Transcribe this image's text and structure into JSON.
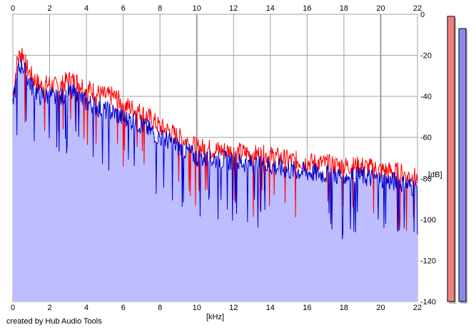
{
  "credit": "created by Hub Audio Tools",
  "chart_data": {
    "type": "area",
    "xlabel": "[kHz]",
    "ylabel": "[dB]",
    "xlim": [
      0,
      22
    ],
    "ylim": [
      -140,
      0
    ],
    "x_ticks": [
      0,
      2,
      4,
      6,
      8,
      10,
      12,
      14,
      16,
      18,
      20,
      22
    ],
    "y_ticks": [
      0,
      -20,
      -40,
      -60,
      -80,
      -100,
      -120,
      -140
    ],
    "grid": true,
    "colors": {
      "left_channel": "#ff0000",
      "right_channel": "#0000cc",
      "fill": "#bdbdff",
      "grid": "#a0a0a0",
      "meter_left": "#f08080",
      "meter_right": "#8a8aee"
    },
    "series": [
      {
        "color": "#ff0000",
        "x": [
          0,
          0.25,
          0.5,
          0.75,
          1,
          1.5,
          2,
          2.5,
          3,
          3.5,
          4,
          4.5,
          5,
          5.5,
          6,
          6.5,
          7,
          7.5,
          8,
          8.5,
          9,
          9.5,
          10,
          11,
          12,
          13,
          14,
          15,
          16,
          17,
          18,
          19,
          20,
          21,
          22
        ],
        "values": [
          -40,
          -22,
          -18,
          -26,
          -30,
          -35,
          -34,
          -36,
          -32,
          -33,
          -36,
          -38,
          -40,
          -40,
          -44,
          -46,
          -48,
          -51,
          -55,
          -57,
          -60,
          -62,
          -65,
          -66,
          -67,
          -68,
          -69,
          -71,
          -72,
          -73,
          -74,
          -74,
          -76,
          -77,
          -80
        ]
      },
      {
        "color": "#0000cc",
        "x": [
          0,
          0.25,
          0.5,
          0.75,
          1,
          1.5,
          2,
          2.5,
          3,
          3.5,
          4,
          4.5,
          5,
          5.5,
          6,
          6.5,
          7,
          7.5,
          8,
          8.5,
          9,
          9.5,
          10,
          11,
          12,
          13,
          14,
          15,
          16,
          17,
          18,
          19,
          20,
          21,
          22
        ],
        "values": [
          -46,
          -28,
          -24,
          -30,
          -35,
          -40,
          -40,
          -42,
          -38,
          -40,
          -43,
          -45,
          -47,
          -48,
          -51,
          -52,
          -54,
          -57,
          -60,
          -62,
          -65,
          -67,
          -70,
          -71,
          -72,
          -73,
          -74,
          -76,
          -77,
          -78,
          -79,
          -79,
          -81,
          -82,
          -85
        ]
      }
    ],
    "meters": [
      {
        "channel": "left",
        "value": -1,
        "color": "#f08080"
      },
      {
        "channel": "right",
        "value": -7,
        "color": "#8a8aee"
      }
    ]
  }
}
